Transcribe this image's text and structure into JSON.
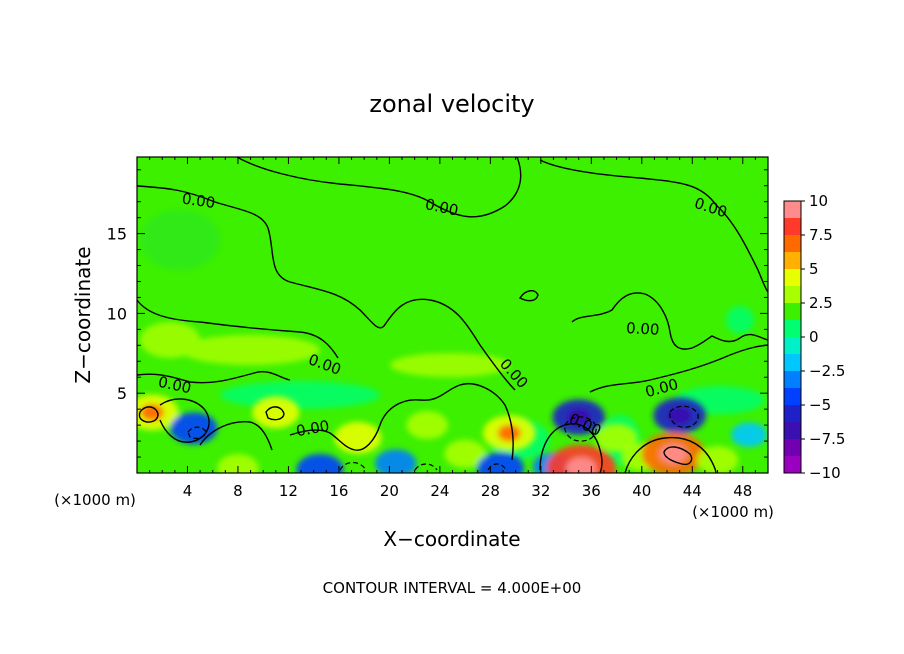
{
  "chart_data": {
    "type": "heatmap",
    "title": "zonal velocity",
    "xlabel": "X−coordinate",
    "ylabel": "Z−coordinate",
    "x_unit_left": "(×1000 m)",
    "x_unit_right": "(×1000 m)",
    "footer": "CONTOUR INTERVAL = 4.000E+00",
    "xlim": [
      0,
      50
    ],
    "ylim": [
      0,
      19.8
    ],
    "x_ticks": [
      4,
      8,
      12,
      16,
      20,
      24,
      28,
      32,
      36,
      40,
      44,
      48
    ],
    "x_tick_labels": [
      "4",
      "8",
      "12",
      "16",
      "20",
      "24",
      "28",
      "32",
      "36",
      "40",
      "44",
      "48"
    ],
    "y_ticks": [
      5,
      10,
      15
    ],
    "y_tick_labels": [
      "5",
      "10",
      "15"
    ],
    "colorbar": {
      "levels": [
        10,
        7.5,
        5,
        2.5,
        0,
        -2.5,
        -5,
        -7.5,
        -10
      ],
      "labels": [
        "10",
        "7.5",
        "5",
        "2.5",
        "0",
        "−2.5",
        "−5",
        "−7.5",
        "−10"
      ],
      "colors": [
        "#ff8c8c",
        "#ff3a2a",
        "#ff6a00",
        "#ffb000",
        "#e8ff00",
        "#a8ff00",
        "#3cf000",
        "#00ff70",
        "#00f0c8",
        "#00c8ff",
        "#0080ff",
        "#0040ff",
        "#2020c8",
        "#3a10b0",
        "#7000b0",
        "#9a00c0"
      ]
    },
    "contour_labels": [
      "0.00",
      "0.00",
      "0.00",
      "0.00",
      "0.00",
      "0.00",
      "0.00",
      "0.00",
      "0.00",
      "0.00"
    ],
    "background_value": 0,
    "features": [
      {
        "x": 1.2,
        "z": 3.8,
        "value": 5
      },
      {
        "x": 4.5,
        "z": 2.8,
        "value": -4
      },
      {
        "x": 8.0,
        "z": 0.3,
        "value": 3
      },
      {
        "x": 11.0,
        "z": 3.8,
        "value": 4
      },
      {
        "x": 14.5,
        "z": 0.2,
        "value": -4
      },
      {
        "x": 17.5,
        "z": 2.2,
        "value": 4
      },
      {
        "x": 20.5,
        "z": 0.6,
        "value": -3
      },
      {
        "x": 23.0,
        "z": 3.0,
        "value": 3
      },
      {
        "x": 26.0,
        "z": 1.2,
        "value": 3
      },
      {
        "x": 29.5,
        "z": 2.5,
        "value": 5
      },
      {
        "x": 28.8,
        "z": 0.3,
        "value": -4
      },
      {
        "x": 33.0,
        "z": 0.4,
        "value": -3
      },
      {
        "x": 35.0,
        "z": 3.5,
        "value": -5
      },
      {
        "x": 35.2,
        "z": 0.3,
        "value": 8
      },
      {
        "x": 38.0,
        "z": 2.2,
        "value": 3
      },
      {
        "x": 40.0,
        "z": 1.0,
        "value": 3
      },
      {
        "x": 43.0,
        "z": 3.6,
        "value": -5
      },
      {
        "x": 42.5,
        "z": 1.2,
        "value": 7
      },
      {
        "x": 46.0,
        "z": 0.8,
        "value": 3
      },
      {
        "x": 48.5,
        "z": 2.4,
        "value": -2
      }
    ]
  }
}
